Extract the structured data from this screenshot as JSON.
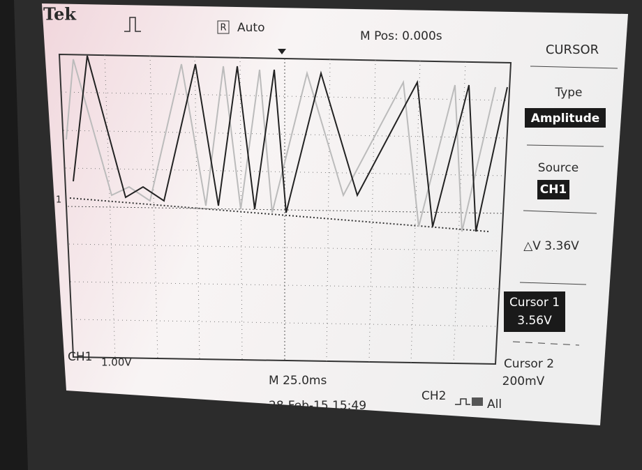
{
  "header": {
    "brand": "Tek",
    "trigger_icon": "R",
    "trigger_mode": "Auto",
    "position": "M Pos: 0.000s"
  },
  "menu": {
    "title": "CURSOR",
    "items": [
      {
        "label": "Type",
        "value": "Amplitude"
      },
      {
        "label": "Source",
        "value": "CH1"
      },
      {
        "label": "△V 3.36V"
      },
      {
        "label": "Cursor 1",
        "value": "3.56V"
      },
      {
        "label": "Cursor 2",
        "value": "200mV"
      }
    ]
  },
  "screen": {
    "channel_marker": "1"
  },
  "footer": {
    "channel": "CH1",
    "scale": "1.00V",
    "timebase": "M 25.0ms",
    "datetime": "28-Feb-15 15:49",
    "trigger_source": "CH2",
    "trigger_extra": "All"
  }
}
